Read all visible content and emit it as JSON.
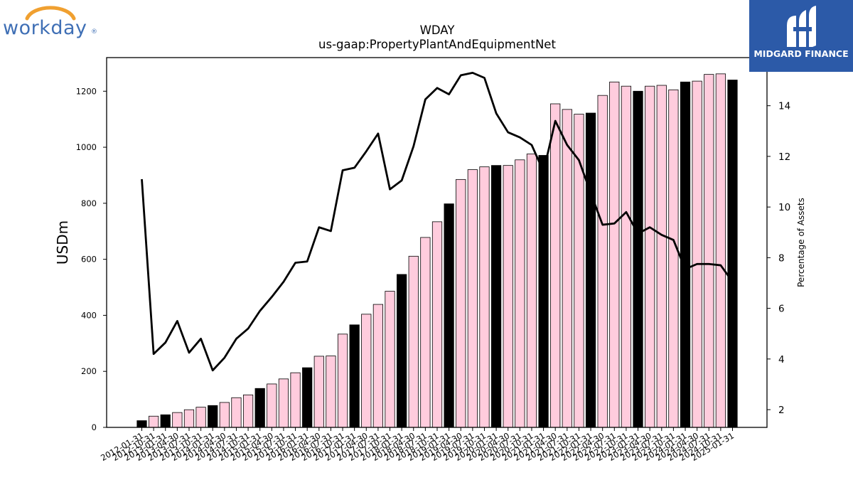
{
  "logos": {
    "left_text": "workday",
    "left_mark": "®",
    "right_text": "MIDGARD FINANCE"
  },
  "chart_data": {
    "type": "bar",
    "title": "WDAY",
    "subtitle": "us-gaap:PropertyPlantAndEquipmentNet",
    "ylabel": "USDm",
    "y2label": "Percentage of Assets",
    "ylim": [
      0,
      1320
    ],
    "y2lim": [
      1.3,
      15.9
    ],
    "yticks": [
      0,
      200,
      400,
      600,
      800,
      1000,
      1200
    ],
    "y2ticks": [
      2,
      4,
      6,
      8,
      10,
      12,
      14
    ],
    "grid": false,
    "colors": {
      "fiscal_year_end": "#000000",
      "quarter": "#ffccdd",
      "line": "#000000"
    },
    "categories": [
      "2012-01-31",
      "2012-10-31",
      "2013-01-31",
      "2013-04-30",
      "2013-07-31",
      "2013-10-31",
      "2014-01-31",
      "2014-04-30",
      "2014-07-31",
      "2014-10-31",
      "2015-01-31",
      "2015-04-30",
      "2015-07-31",
      "2015-10-31",
      "2016-01-31",
      "2016-04-30",
      "2016-07-31",
      "2016-10-31",
      "2017-01-31",
      "2017-04-30",
      "2017-07-31",
      "2017-10-31",
      "2018-01-31",
      "2018-04-30",
      "2018-07-31",
      "2018-10-31",
      "2019-01-31",
      "2019-04-30",
      "2019-07-31",
      "2019-10-31",
      "2020-01-31",
      "2020-04-30",
      "2020-07-31",
      "2020-10-31",
      "2021-01-31",
      "2021-04-30",
      "2021-07-31",
      "2021-10-31",
      "2022-01-31",
      "2022-04-30",
      "2022-07-31",
      "2022-10-31",
      "2023-01-31",
      "2023-04-30",
      "2023-07-31",
      "2023-10-31",
      "2024-01-31",
      "2024-04-30",
      "2024-07-31",
      "2024-10-31",
      "2025-01-31"
    ],
    "series": [
      {
        "type": "bar",
        "values": [
          24,
          40,
          45,
          53,
          63,
          72,
          78,
          89,
          106,
          116,
          139,
          155,
          173,
          195,
          213,
          254,
          255,
          333,
          366,
          404,
          439,
          486,
          546,
          611,
          678,
          734,
          798,
          885,
          920,
          930,
          935,
          935,
          955,
          976,
          971,
          1155,
          1135,
          1118,
          1122,
          1185,
          1233,
          1218,
          1200,
          1218,
          1221,
          1205,
          1233,
          1236,
          1260,
          1262,
          1240
        ],
        "year_end": [
          true,
          false,
          true,
          false,
          false,
          false,
          true,
          false,
          false,
          false,
          true,
          false,
          false,
          false,
          true,
          false,
          false,
          false,
          true,
          false,
          false,
          false,
          true,
          false,
          false,
          false,
          true,
          false,
          false,
          false,
          true,
          false,
          false,
          false,
          true,
          false,
          false,
          false,
          true,
          false,
          false,
          false,
          true,
          false,
          false,
          false,
          true,
          false,
          false,
          false,
          true
        ]
      },
      {
        "type": "line",
        "axis": "right",
        "values": [
          11.1,
          4.2,
          4.65,
          5.5,
          4.25,
          4.8,
          3.55,
          4.05,
          4.8,
          5.2,
          5.9,
          6.45,
          7.05,
          7.8,
          7.85,
          9.2,
          9.05,
          11.45,
          11.55,
          12.2,
          12.9,
          10.7,
          11.05,
          12.4,
          14.25,
          14.7,
          14.45,
          15.2,
          15.3,
          15.1,
          13.7,
          12.95,
          12.75,
          12.45,
          11.4,
          13.4,
          12.45,
          11.85,
          10.55,
          9.3,
          9.35,
          9.8,
          8.95,
          9.2,
          8.9,
          8.7,
          7.55,
          7.75,
          7.75,
          7.7,
          7.05
        ]
      }
    ]
  }
}
